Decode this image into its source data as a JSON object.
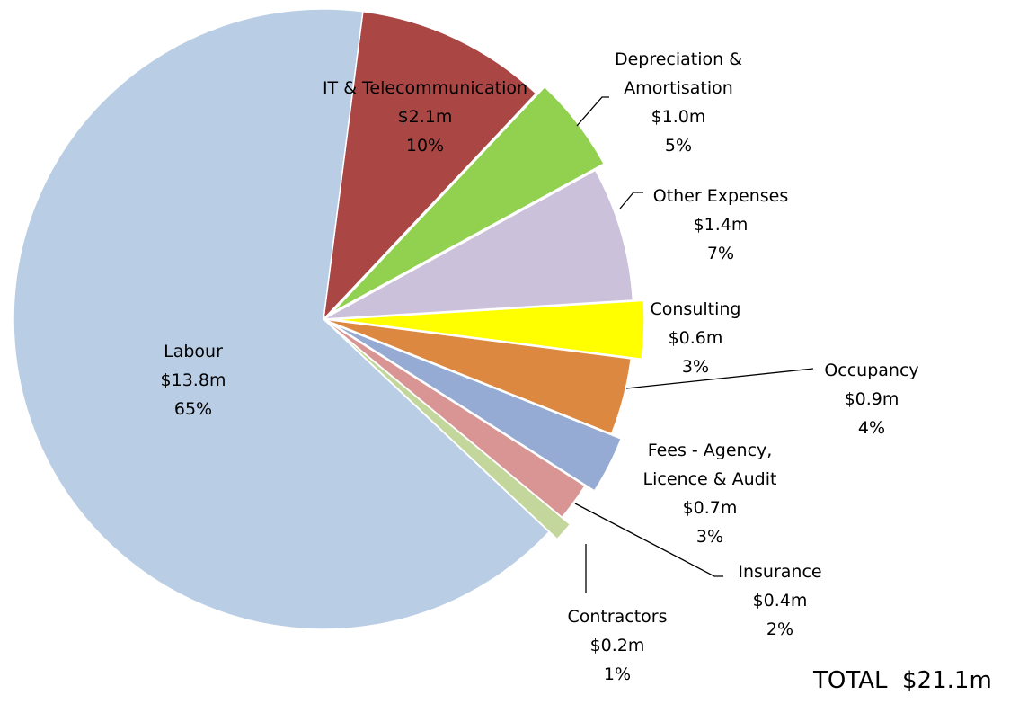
{
  "chart_data": {
    "type": "pie",
    "categories": [
      "IT & Telecommunication",
      "Depreciation & Amortisation",
      "Other Expenses",
      "Consulting",
      "Occupancy",
      "Fees - Agency, Licence & Audit",
      "Insurance",
      "Contractors",
      "Labour"
    ],
    "values": [
      10,
      5,
      7,
      3,
      4,
      3,
      2,
      1,
      65
    ],
    "value_labels": [
      "10%",
      "5%",
      "7%",
      "3%",
      "4%",
      "3%",
      "2%",
      "1%",
      "65%"
    ],
    "amount_labels": [
      "$2.1m",
      "$1.0m",
      "$1.4m",
      "$0.6m",
      "$0.9m",
      "$0.7m",
      "$0.4m",
      "$0.2m",
      "$13.8m"
    ],
    "colors": [
      "#aa4643",
      "#92d050",
      "#ccc1da",
      "#ffff00",
      "#dd8840",
      "#95abd3",
      "#d99594",
      "#c3d69b",
      "#b9cde5"
    ],
    "explode": [
      false,
      true,
      false,
      true,
      false,
      true,
      false,
      true,
      false
    ],
    "total": "TOTAL  $21.1m"
  }
}
